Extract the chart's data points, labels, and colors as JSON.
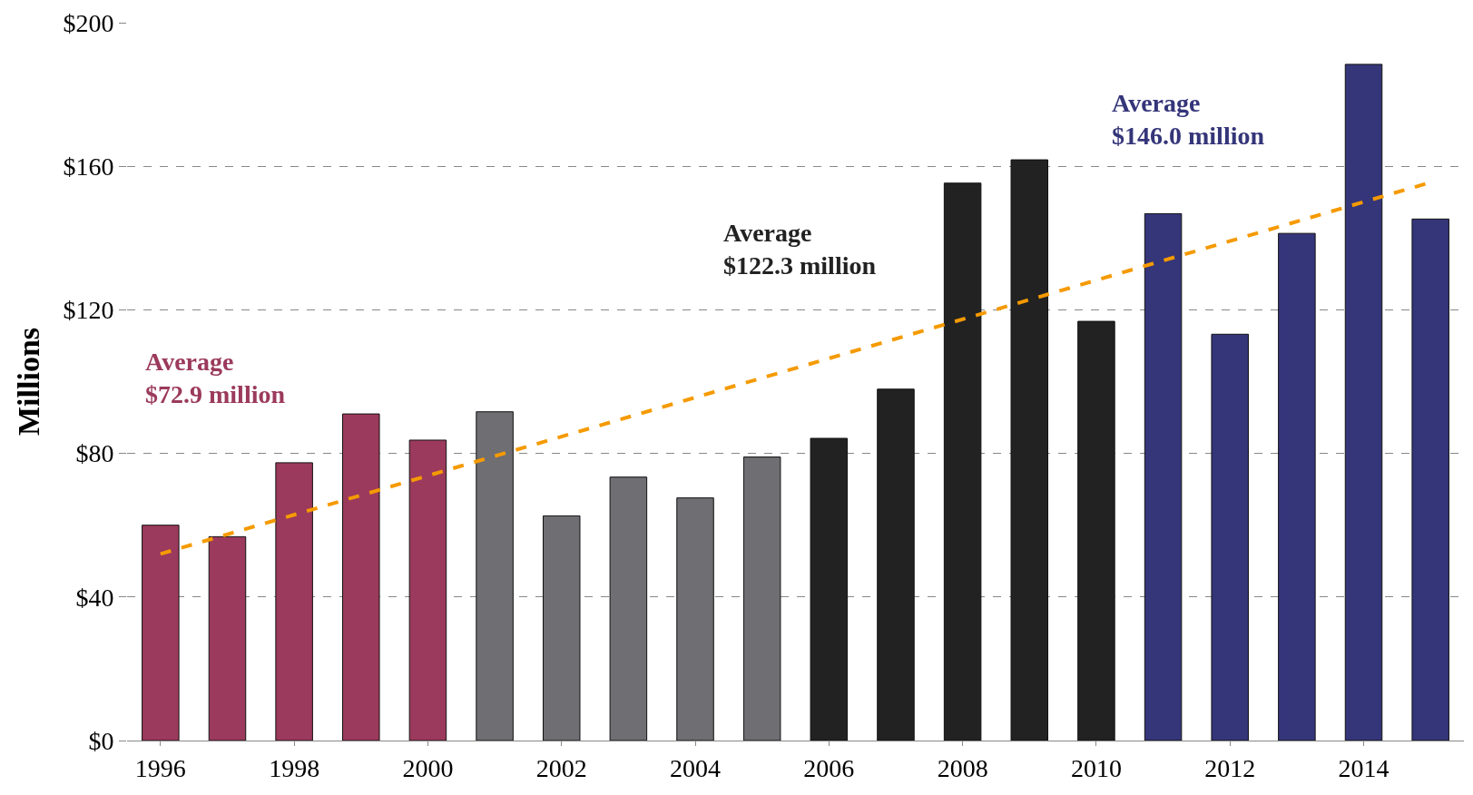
{
  "chart_data": {
    "type": "bar",
    "ylabel": "Millions",
    "x": [
      1996,
      1997,
      1998,
      1999,
      2000,
      2001,
      2002,
      2003,
      2004,
      2005,
      2006,
      2007,
      2008,
      2009,
      2010,
      2011,
      2012,
      2013,
      2014,
      2015
    ],
    "xlim": [
      1995.5,
      2015.5
    ],
    "xticks": [
      1996,
      1998,
      2000,
      2002,
      2004,
      2006,
      2008,
      2010,
      2012,
      2014
    ],
    "ylim": [
      0,
      200
    ],
    "yticks": [
      {
        "value": 0,
        "label": "$0"
      },
      {
        "value": 40,
        "label": "$40"
      },
      {
        "value": 80,
        "label": "$80"
      },
      {
        "value": 120,
        "label": "$120"
      },
      {
        "value": 160,
        "label": "$160"
      },
      {
        "value": 200,
        "label": "$200"
      }
    ],
    "series": [
      {
        "values": [
          60,
          56.8,
          77.4,
          91,
          83.7,
          91.6,
          62.6,
          73.4,
          67.6,
          79,
          84.2,
          97.9,
          155.3,
          161.8,
          116.8,
          146.8,
          113.2,
          141.3,
          188.4,
          145.3
        ],
        "colors": [
          "#9b3a5c",
          "#9b3a5c",
          "#9b3a5c",
          "#9b3a5c",
          "#9b3a5c",
          "#6e6e73",
          "#6e6e73",
          "#6e6e73",
          "#6e6e73",
          "#6e6e73",
          "#222222",
          "#222222",
          "#222222",
          "#222222",
          "#222222",
          "#35357a",
          "#35357a",
          "#35357a",
          "#35357a",
          "#35357a"
        ]
      },
      {
        "type": "line",
        "x": [
          1996,
          2015
        ],
        "values": [
          52,
          155.5
        ],
        "color": "#f59a00",
        "line_style": "dashed"
      }
    ],
    "annotations": [
      "Average\n$72.9 million",
      "Average\n$122.3 million",
      "Average\n$146.0 million"
    ],
    "grid": "y"
  }
}
